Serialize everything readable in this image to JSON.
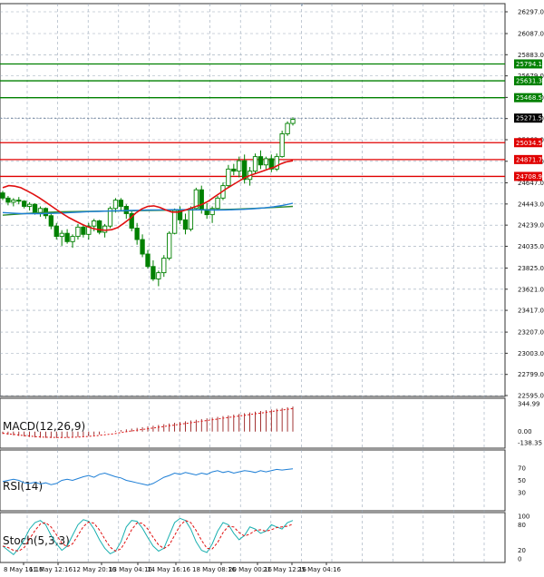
{
  "chart_data": {
    "type": "candlestick",
    "price_axis": {
      "labels": [
        "26297.0",
        "26087.0",
        "25883.0",
        "25679.0",
        "25471.0",
        "25267.0",
        "25063.0",
        "24855.0",
        "24647.0",
        "24443.0",
        "24239.0",
        "24035.0",
        "23825.0",
        "23621.0",
        "23417.0",
        "23207.0",
        "23003.0",
        "22799.0",
        "22595.0"
      ],
      "min": 22595,
      "max": 26297
    },
    "time_axis": {
      "labels": [
        "8 May 16:16",
        "11 May 12:16",
        "12 May 20:16",
        "13 May 04:16",
        "14 May 16:16",
        "18 May 08:16",
        "20 May 00:16",
        "21 May 12:16",
        "25 May 04:16"
      ]
    },
    "levels": {
      "resistance": [
        25794.1,
        25631.3,
        25468.5
      ],
      "current": 25271.5,
      "support": [
        25034.5,
        24871.7,
        24708.9
      ]
    },
    "candles": [
      [
        24550,
        24570,
        24480,
        24500
      ],
      [
        24500,
        24520,
        24430,
        24460
      ],
      [
        24460,
        24500,
        24420,
        24480
      ],
      [
        24480,
        24510,
        24440,
        24470
      ],
      [
        24470,
        24480,
        24400,
        24420
      ],
      [
        24420,
        24460,
        24380,
        24440
      ],
      [
        24440,
        24450,
        24340,
        24360
      ],
      [
        24360,
        24420,
        24320,
        24400
      ],
      [
        24400,
        24410,
        24300,
        24330
      ],
      [
        24330,
        24350,
        24200,
        24230
      ],
      [
        24230,
        24260,
        24100,
        24130
      ],
      [
        24130,
        24190,
        24040,
        24160
      ],
      [
        24160,
        24200,
        24060,
        24080
      ],
      [
        24080,
        24150,
        24020,
        24130
      ],
      [
        24130,
        24250,
        24100,
        24220
      ],
      [
        24220,
        24240,
        24120,
        24150
      ],
      [
        24150,
        24260,
        24100,
        24230
      ],
      [
        24230,
        24300,
        24180,
        24280
      ],
      [
        24280,
        24290,
        24150,
        24170
      ],
      [
        24170,
        24250,
        24120,
        24230
      ],
      [
        24230,
        24420,
        24210,
        24400
      ],
      [
        24400,
        24500,
        24360,
        24480
      ],
      [
        24480,
        24500,
        24380,
        24420
      ],
      [
        24420,
        24440,
        24300,
        24350
      ],
      [
        24350,
        24380,
        24180,
        24210
      ],
      [
        24210,
        24260,
        24050,
        24100
      ],
      [
        24100,
        24150,
        23930,
        23960
      ],
      [
        23960,
        24000,
        23820,
        23840
      ],
      [
        23840,
        23900,
        23700,
        23720
      ],
      [
        23720,
        23800,
        23650,
        23780
      ],
      [
        23780,
        23950,
        23740,
        23920
      ],
      [
        23920,
        24180,
        23900,
        24160
      ],
      [
        24160,
        24400,
        24150,
        24380
      ],
      [
        24380,
        24420,
        24250,
        24290
      ],
      [
        24290,
        24350,
        24150,
        24200
      ],
      [
        24200,
        24420,
        24180,
        24400
      ],
      [
        24400,
        24600,
        24380,
        24580
      ],
      [
        24580,
        24620,
        24350,
        24390
      ],
      [
        24390,
        24450,
        24300,
        24340
      ],
      [
        24340,
        24420,
        24260,
        24400
      ],
      [
        24400,
        24520,
        24380,
        24500
      ],
      [
        24500,
        24650,
        24480,
        24620
      ],
      [
        24620,
        24820,
        24600,
        24780
      ],
      [
        24780,
        24830,
        24720,
        24760
      ],
      [
        24760,
        24900,
        24700,
        24860
      ],
      [
        24860,
        24920,
        24640,
        24680
      ],
      [
        24680,
        24800,
        24620,
        24760
      ],
      [
        24760,
        24930,
        24730,
        24900
      ],
      [
        24900,
        24960,
        24780,
        24820
      ],
      [
        24820,
        24900,
        24780,
        24880
      ],
      [
        24880,
        24920,
        24750,
        24780
      ],
      [
        24780,
        24930,
        24760,
        24900
      ],
      [
        24900,
        25150,
        24890,
        25120
      ],
      [
        25120,
        25240,
        25100,
        25220
      ],
      [
        25220,
        25280,
        25200,
        25260
      ]
    ],
    "ma": {
      "red": [
        24600,
        24620,
        24615,
        24600,
        24570,
        24540,
        24505,
        24465,
        24425,
        24385,
        24345,
        24310,
        24280,
        24250,
        24225,
        24205,
        24195,
        24190,
        24195,
        24215,
        24255,
        24300,
        24355,
        24395,
        24420,
        24425,
        24410,
        24385,
        24365,
        24365,
        24380,
        24400,
        24420,
        24440,
        24470,
        24510,
        24550,
        24590,
        24625,
        24660,
        24695,
        24720,
        24740,
        24760,
        24780,
        24800,
        24830,
        24850,
        24860
      ],
      "blue": [
        24360,
        24355,
        24350,
        24350,
        24350,
        24352,
        24355,
        24360,
        24365,
        24370,
        24372,
        24375,
        24378,
        24380,
        24382,
        24385,
        24386,
        24387,
        24388,
        24388,
        24387,
        24386,
        24385,
        24386,
        24388,
        24392,
        24398,
        24405,
        24415,
        24430,
        24450
      ],
      "green": [
        24335,
        24345,
        24355,
        24362,
        24367,
        24370,
        24372,
        24374,
        24376,
        24378,
        24380,
        24382,
        24384,
        24386,
        24388,
        24390,
        24393,
        24398,
        24405,
        24412,
        24420
      ]
    },
    "indicators": {
      "macd": {
        "title": "MACD(12,26,9)",
        "labels": [
          "344.99",
          "0.00",
          "-138.35"
        ],
        "max": 344.99,
        "min": -138.35
      },
      "rsi": {
        "title": "RSI(14)",
        "labels": [
          "70",
          "50",
          "30"
        ]
      },
      "stoch": {
        "title": "Stoch(5,3,3)",
        "labels": [
          "100",
          "80",
          "20",
          "0"
        ]
      }
    },
    "grid": true
  },
  "colors": {
    "candle": "#008000",
    "resistance": "#008000",
    "support": "#e00000",
    "current_label": "#000000",
    "ma_red": "#e01010",
    "ma_blue": "#1e7fd6",
    "ma_green": "#2e8b2e",
    "signal": "#e01010",
    "macd_hist": "#8b0000",
    "rsi": "#1e7fd6",
    "stoch_main": "#1ab0b0",
    "grid": "#9aa8b8"
  }
}
